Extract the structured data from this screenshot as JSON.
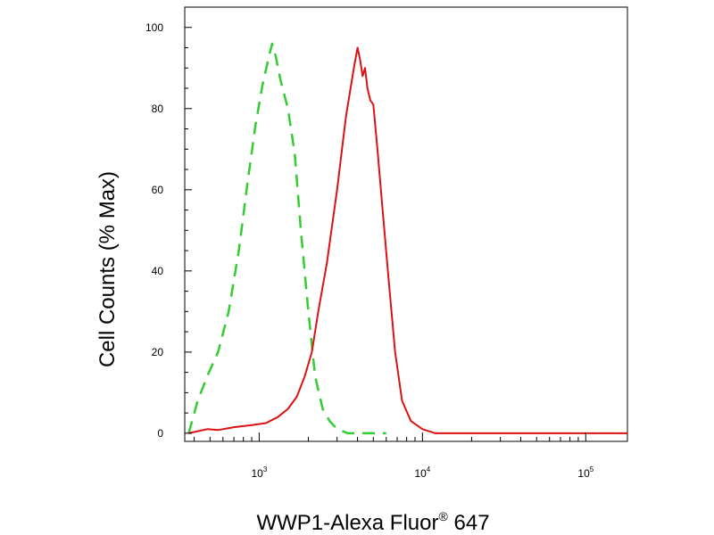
{
  "chart_data": {
    "type": "line",
    "title": "",
    "xlabel": {
      "prefix": "WWP1-Alexa Fluor",
      "superscript": "®",
      "suffix": " 647"
    },
    "ylabel": "Cell Counts (% Max)",
    "x_scale": "log",
    "xlim": [
      350,
      180000
    ],
    "ylim": [
      -2,
      105
    ],
    "y_ticks": [
      {
        "value": 0,
        "label": "0"
      },
      {
        "value": 20,
        "label": "20"
      },
      {
        "value": 40,
        "label": "40"
      },
      {
        "value": 60,
        "label": "60"
      },
      {
        "value": 80,
        "label": "80"
      },
      {
        "value": 100,
        "label": "100"
      }
    ],
    "x_ticks": [
      {
        "value": 1000,
        "base": "10",
        "exp": "3"
      },
      {
        "value": 10000,
        "base": "10",
        "exp": "4"
      },
      {
        "value": 100000,
        "base": "10",
        "exp": "5"
      }
    ],
    "grid": false,
    "series": [
      {
        "color": "#33cc33",
        "style": "dashed",
        "x": [
          370,
          420,
          480,
          560,
          650,
          750,
          850,
          950,
          1050,
          1150,
          1200,
          1260,
          1350,
          1500,
          1650,
          1800,
          2000,
          2200,
          2450,
          2700,
          3000,
          3500,
          4500,
          6000
        ],
        "y": [
          0,
          8,
          14,
          20,
          30,
          45,
          62,
          76,
          86,
          93,
          96,
          93,
          87,
          80,
          69,
          50,
          30,
          14,
          6,
          3,
          1,
          0,
          0,
          0
        ]
      },
      {
        "color": "#dd1111",
        "style": "solid",
        "x": [
          370,
          420,
          480,
          560,
          700,
          900,
          1100,
          1300,
          1500,
          1700,
          1900,
          2100,
          2300,
          2600,
          3000,
          3400,
          3800,
          4000,
          4150,
          4300,
          4450,
          4600,
          4800,
          5000,
          5300,
          5700,
          6200,
          6800,
          7500,
          8500,
          10000,
          12000,
          20000,
          60000,
          180000
        ],
        "y": [
          0,
          0.5,
          1,
          0.8,
          1.5,
          2,
          2.5,
          4,
          6,
          9,
          14,
          20,
          30,
          42,
          60,
          78,
          90,
          95,
          92,
          88,
          90,
          85,
          82,
          81,
          70,
          55,
          38,
          20,
          8,
          3,
          1,
          0,
          0,
          0,
          0
        ]
      }
    ]
  }
}
